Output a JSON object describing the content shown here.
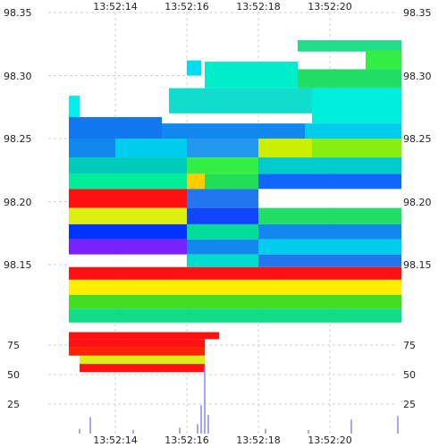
{
  "chart_data": {
    "type": "heatmap",
    "title": "",
    "xlabel": "",
    "ylabel": "",
    "grid": true,
    "x_ticks": [
      "13:52:14",
      "13:52:16",
      "13:52:18",
      "13:52:20"
    ],
    "price_axis": {
      "ticks": [
        "98.35",
        "98.30",
        "98.25",
        "98.20",
        "98.15"
      ],
      "ylim": [
        98.14,
        98.35
      ]
    },
    "volume_axis": {
      "ticks": [
        "75",
        "50",
        "25"
      ],
      "ylim": [
        0,
        100
      ]
    },
    "time_range_seconds": [
      12.7,
      22.2
    ],
    "order_book": [
      {
        "t0": 19.1,
        "t1": 22.0,
        "p0": 98.319,
        "p1": 98.328,
        "color": "#22dd88"
      },
      {
        "t0": 21.0,
        "t1": 22.0,
        "p0": 98.305,
        "p1": 98.32,
        "color": "#33ee44"
      },
      {
        "t0": 16.5,
        "t1": 19.1,
        "p0": 98.29,
        "p1": 98.311,
        "color": "#00eecc"
      },
      {
        "t0": 16.0,
        "t1": 16.4,
        "p0": 98.3,
        "p1": 98.312,
        "color": "#00ddee"
      },
      {
        "t0": 19.1,
        "t1": 22.0,
        "p0": 98.29,
        "p1": 98.305,
        "color": "#22dd66"
      },
      {
        "t0": 15.5,
        "t1": 19.5,
        "p0": 98.27,
        "p1": 98.29,
        "color": "#11ddcc"
      },
      {
        "t0": 19.5,
        "t1": 22.0,
        "p0": 98.262,
        "p1": 98.29,
        "color": "#00eedd"
      },
      {
        "t0": 12.7,
        "t1": 13.0,
        "p0": 98.267,
        "p1": 98.284,
        "color": "#00eeee"
      },
      {
        "t0": 12.7,
        "t1": 15.3,
        "p0": 98.25,
        "p1": 98.267,
        "color": "#1177ee"
      },
      {
        "t0": 15.3,
        "t1": 19.3,
        "p0": 98.25,
        "p1": 98.262,
        "color": "#1188ee"
      },
      {
        "t0": 19.3,
        "t1": 22.0,
        "p0": 98.25,
        "p1": 98.262,
        "color": "#00ccee"
      },
      {
        "t0": 12.7,
        "t1": 14.0,
        "p0": 98.235,
        "p1": 98.25,
        "color": "#1188ee"
      },
      {
        "t0": 14.0,
        "t1": 16.0,
        "p0": 98.235,
        "p1": 98.25,
        "color": "#00ccee"
      },
      {
        "t0": 16.0,
        "t1": 18.0,
        "p0": 98.235,
        "p1": 98.25,
        "color": "#2299ee"
      },
      {
        "t0": 18.0,
        "t1": 19.5,
        "p0": 98.235,
        "p1": 98.25,
        "color": "#ccee00"
      },
      {
        "t0": 19.5,
        "t1": 22.0,
        "p0": 98.235,
        "p1": 98.25,
        "color": "#88ee11"
      },
      {
        "t0": 12.7,
        "t1": 16.0,
        "p0": 98.222,
        "p1": 98.235,
        "color": "#00ccbb"
      },
      {
        "t0": 16.0,
        "t1": 18.0,
        "p0": 98.222,
        "p1": 98.235,
        "color": "#33ee44"
      },
      {
        "t0": 18.0,
        "t1": 22.0,
        "p0": 98.222,
        "p1": 98.235,
        "color": "#00cccc"
      },
      {
        "t0": 12.7,
        "t1": 16.0,
        "p0": 98.21,
        "p1": 98.222,
        "color": "#00ee99"
      },
      {
        "t0": 16.0,
        "t1": 16.5,
        "p0": 98.21,
        "p1": 98.222,
        "color": "#ffcc00"
      },
      {
        "t0": 16.5,
        "t1": 18.0,
        "p0": 98.21,
        "p1": 98.222,
        "color": "#22dd55"
      },
      {
        "t0": 18.0,
        "t1": 22.0,
        "p0": 98.21,
        "p1": 98.222,
        "color": "#1166ff"
      },
      {
        "t0": 12.7,
        "t1": 16.0,
        "p0": 98.195,
        "p1": 98.21,
        "color": "#ff1111"
      },
      {
        "t0": 16.0,
        "t1": 18.0,
        "p0": 98.195,
        "p1": 98.21,
        "color": "#2277ee"
      },
      {
        "t0": 18.0,
        "t1": 22.0,
        "p0": 98.195,
        "p1": 98.21,
        "color": "#ffffff"
      },
      {
        "t0": 12.7,
        "t1": 16.0,
        "p0": 98.182,
        "p1": 98.195,
        "color": "#ddee11"
      },
      {
        "t0": 16.0,
        "t1": 18.0,
        "p0": 98.182,
        "p1": 98.195,
        "color": "#1144ff"
      },
      {
        "t0": 18.0,
        "t1": 22.0,
        "p0": 98.182,
        "p1": 98.195,
        "color": "#22dd66"
      },
      {
        "t0": 12.7,
        "t1": 16.0,
        "p0": 98.17,
        "p1": 98.182,
        "color": "#0033ff"
      },
      {
        "t0": 16.0,
        "t1": 18.0,
        "p0": 98.17,
        "p1": 98.182,
        "color": "#00dd99"
      },
      {
        "t0": 18.0,
        "t1": 22.0,
        "p0": 98.17,
        "p1": 98.182,
        "color": "#1188ee"
      },
      {
        "t0": 12.7,
        "t1": 16.0,
        "p0": 98.158,
        "p1": 98.17,
        "color": "#7722ff"
      },
      {
        "t0": 16.0,
        "t1": 18.0,
        "p0": 98.158,
        "p1": 98.17,
        "color": "#1188ee"
      },
      {
        "t0": 18.0,
        "t1": 22.0,
        "p0": 98.158,
        "p1": 98.17,
        "color": "#00ccee"
      },
      {
        "t0": 12.7,
        "t1": 16.0,
        "p0": 98.148,
        "p1": 98.158,
        "color": "#ffffff"
      },
      {
        "t0": 16.0,
        "t1": 18.0,
        "p0": 98.148,
        "p1": 98.158,
        "color": "#00ddcc"
      },
      {
        "t0": 18.0,
        "t1": 22.0,
        "p0": 98.148,
        "p1": 98.158,
        "color": "#2277ee"
      },
      {
        "t0": 12.7,
        "t1": 22.0,
        "p0": 98.138,
        "p1": 98.148,
        "color": "#ff1111"
      },
      {
        "t0": 12.7,
        "t1": 22.0,
        "p0": 98.126,
        "p1": 98.138,
        "color": "#ffee00"
      },
      {
        "t0": 12.7,
        "t1": 22.0,
        "p0": 98.115,
        "p1": 98.126,
        "color": "#44dd22"
      },
      {
        "t0": 12.7,
        "t1": 22.0,
        "p0": 98.104,
        "p1": 98.115,
        "color": "#11dd88"
      }
    ],
    "volume_bands": [
      {
        "t0": 12.7,
        "t1": 16.9,
        "v0": 80,
        "v1": 86,
        "color": "#ff1111"
      },
      {
        "t0": 12.7,
        "t1": 16.5,
        "v0": 73,
        "v1": 80,
        "color": "#ff1111"
      },
      {
        "t0": 12.7,
        "t1": 16.5,
        "v0": 66,
        "v1": 73,
        "color": "#ff2200"
      },
      {
        "t0": 13.0,
        "t1": 16.5,
        "v0": 59,
        "v1": 66,
        "color": "#ddee11"
      },
      {
        "t0": 13.0,
        "t1": 16.5,
        "v0": 52,
        "v1": 59,
        "color": "#ff1111"
      }
    ],
    "volume_bars": [
      {
        "t": 13.0,
        "v": 4
      },
      {
        "t": 13.3,
        "v": 14
      },
      {
        "t": 14.5,
        "v": 3
      },
      {
        "t": 15.8,
        "v": 5
      },
      {
        "t": 16.3,
        "v": 8
      },
      {
        "t": 16.4,
        "v": 24
      },
      {
        "t": 16.5,
        "v": 57
      },
      {
        "t": 16.6,
        "v": 16
      },
      {
        "t": 18.2,
        "v": 4
      },
      {
        "t": 19.4,
        "v": 3
      },
      {
        "t": 20.6,
        "v": 12
      },
      {
        "t": 21.9,
        "v": 15
      }
    ]
  }
}
